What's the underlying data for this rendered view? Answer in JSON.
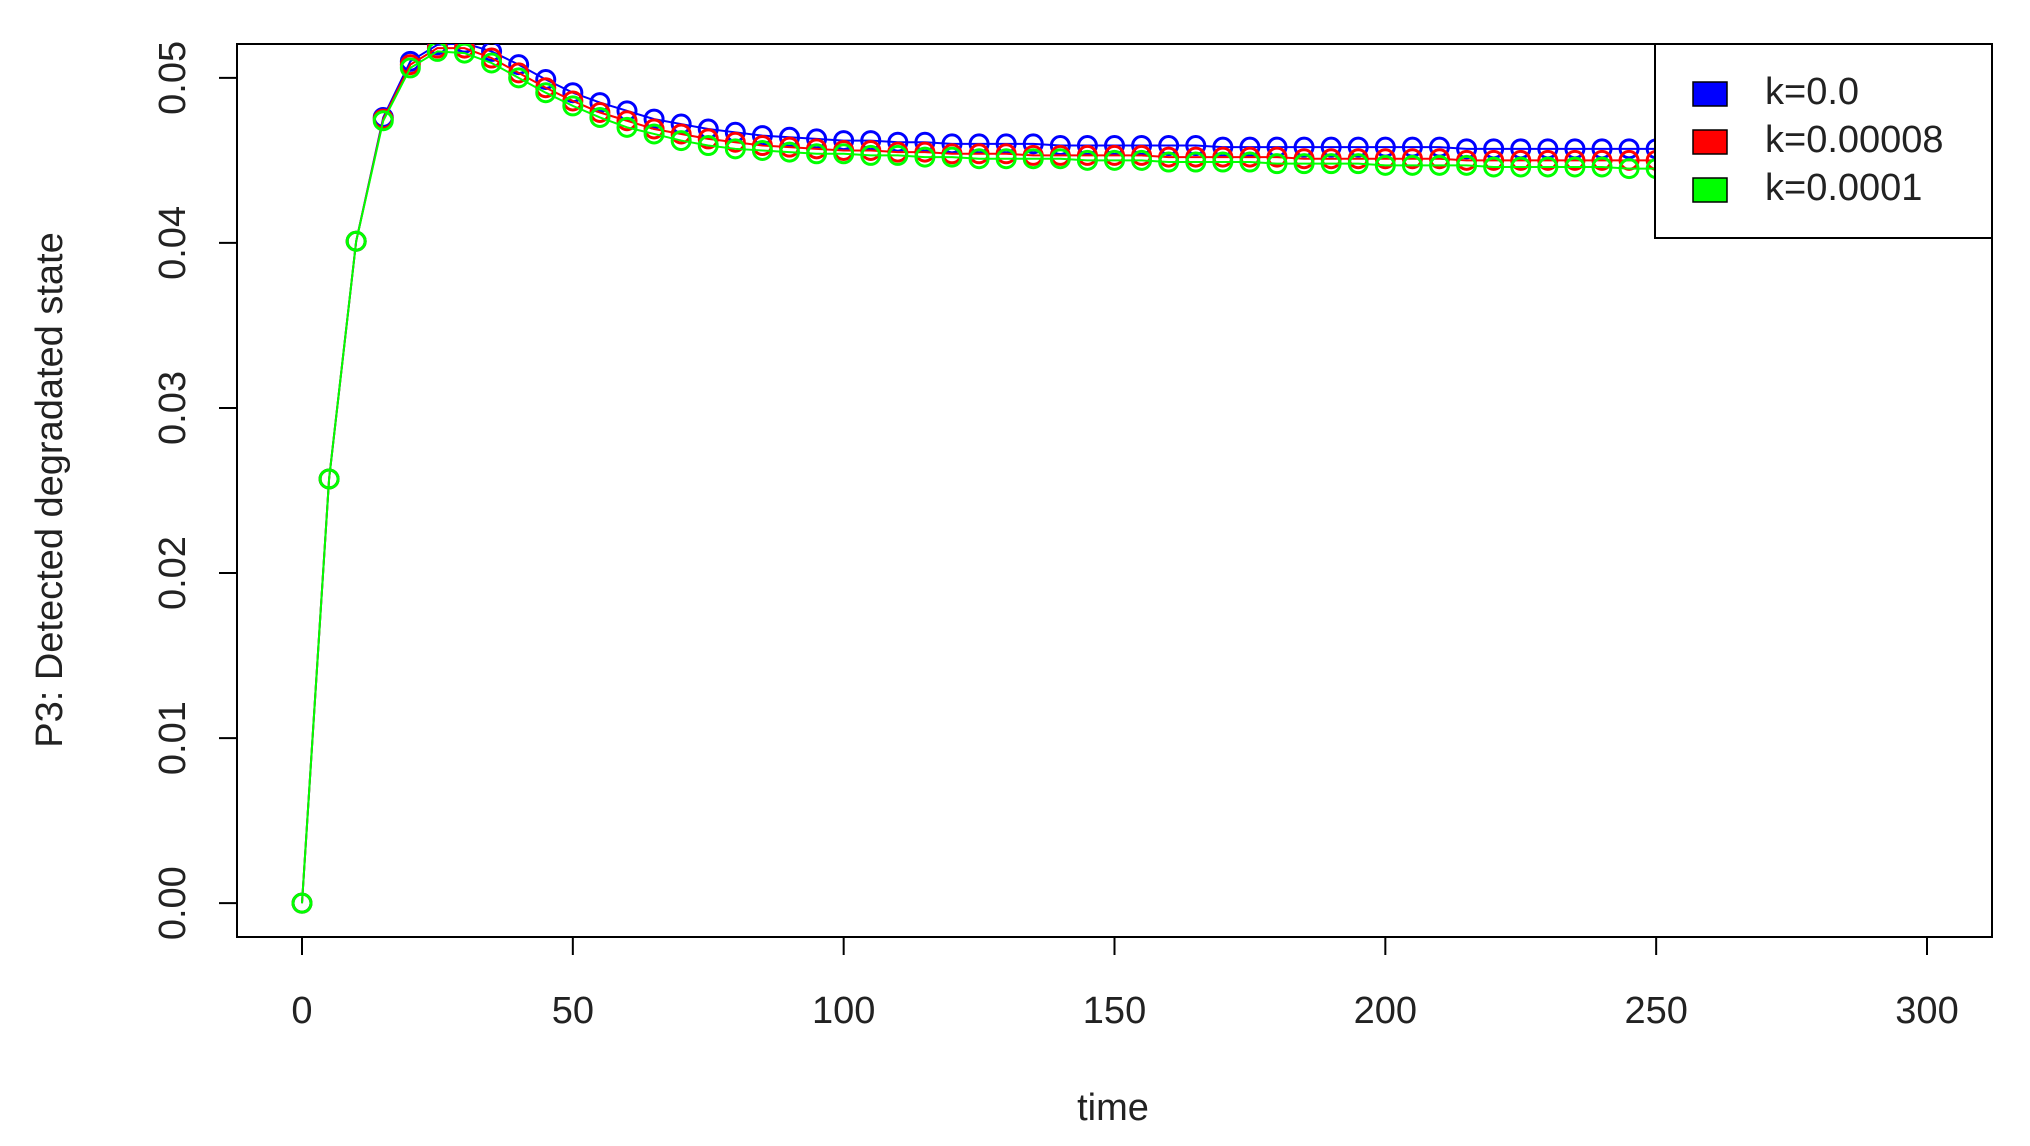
{
  "chart_data": {
    "type": "line",
    "xlabel": "time",
    "ylabel": "P3: Detected degradated state",
    "x": [
      0,
      5,
      10,
      15,
      20,
      25,
      30,
      35,
      40,
      45,
      50,
      55,
      60,
      65,
      70,
      75,
      80,
      85,
      90,
      95,
      100,
      105,
      110,
      115,
      120,
      125,
      130,
      135,
      140,
      145,
      150,
      155,
      160,
      165,
      170,
      175,
      180,
      185,
      190,
      195,
      200,
      205,
      210,
      215,
      220,
      225,
      230,
      235,
      240,
      245,
      250
    ],
    "series": [
      {
        "name": "k=0.0",
        "color": "#0000ff",
        "values": [
          0,
          0.0257,
          0.0401,
          0.0476,
          0.051,
          0.052,
          0.0521,
          0.0516,
          0.0508,
          0.0499,
          0.0491,
          0.0485,
          0.048,
          0.0475,
          0.0472,
          0.0469,
          0.0467,
          0.0465,
          0.0464,
          0.0463,
          0.0462,
          0.0462,
          0.0461,
          0.0461,
          0.046,
          0.046,
          0.046,
          0.046,
          0.0459,
          0.0459,
          0.0459,
          0.0459,
          0.0459,
          0.0459,
          0.0458,
          0.0458,
          0.0458,
          0.0458,
          0.0458,
          0.0458,
          0.0458,
          0.0458,
          0.0458,
          0.0457,
          0.0457,
          0.0457,
          0.0457,
          0.0457,
          0.0457,
          0.0457,
          0.0457
        ]
      },
      {
        "name": "k=0.00008",
        "color": "#ff0000",
        "values": [
          0,
          0.0257,
          0.0401,
          0.0475,
          0.0508,
          0.0518,
          0.0518,
          0.0512,
          0.0503,
          0.0494,
          0.0486,
          0.0479,
          0.0474,
          0.0469,
          0.0466,
          0.0463,
          0.0461,
          0.0459,
          0.0458,
          0.0457,
          0.0456,
          0.0456,
          0.0455,
          0.0455,
          0.0454,
          0.0454,
          0.0454,
          0.0453,
          0.0453,
          0.0453,
          0.0453,
          0.0453,
          0.0452,
          0.0452,
          0.0452,
          0.0452,
          0.0452,
          0.0451,
          0.0451,
          0.0451,
          0.0451,
          0.0451,
          0.0451,
          0.045,
          0.045,
          0.045,
          0.045,
          0.045,
          0.045,
          0.045,
          0.045
        ]
      },
      {
        "name": "k=0.0001",
        "color": "#00ff00",
        "values": [
          0,
          0.0257,
          0.0401,
          0.0474,
          0.0506,
          0.0516,
          0.0515,
          0.0509,
          0.05,
          0.0491,
          0.0483,
          0.0476,
          0.047,
          0.0466,
          0.0462,
          0.0459,
          0.0457,
          0.0456,
          0.0455,
          0.0454,
          0.0454,
          0.0453,
          0.0453,
          0.0452,
          0.0452,
          0.0451,
          0.0451,
          0.0451,
          0.0451,
          0.045,
          0.045,
          0.045,
          0.0449,
          0.0449,
          0.0449,
          0.0449,
          0.0448,
          0.0448,
          0.0448,
          0.0448,
          0.0447,
          0.0447,
          0.0447,
          0.0447,
          0.0446,
          0.0446,
          0.0446,
          0.0446,
          0.0446,
          0.0445,
          0.0445
        ]
      }
    ],
    "xlim": [
      -12,
      312
    ],
    "xticks": [
      0,
      50,
      100,
      150,
      200,
      250,
      300
    ],
    "ylim": [
      -0.00205,
      0.05205
    ],
    "yticks": [
      {
        "value": 0,
        "label": "0.00"
      },
      0.01,
      0.02,
      0.03,
      0.04,
      0.05
    ],
    "legend": "top-right",
    "markers": true,
    "grid": false
  }
}
